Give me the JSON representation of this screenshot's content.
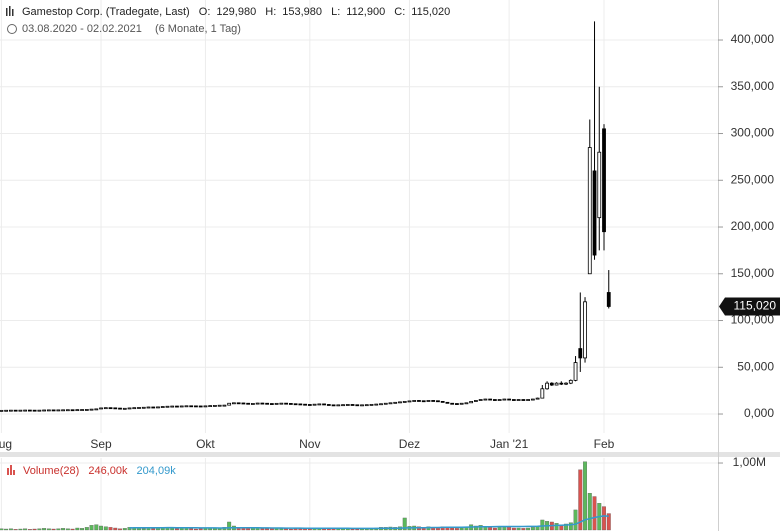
{
  "header": {
    "title": "Gamestop Corp. (Tradegate, Last)",
    "quotes": [
      {
        "label": "O:",
        "value": "129,980"
      },
      {
        "label": "H:",
        "value": "153,980"
      },
      {
        "label": "L:",
        "value": "112,900"
      },
      {
        "label": "C:",
        "value": "115,020"
      }
    ],
    "range": "03.08.2020 - 02.02.2021",
    "period": "(6 Monate, 1 Tag)"
  },
  "chart_data": {
    "type": "candlestick",
    "categories": [
      "Aug",
      null,
      null,
      null,
      null,
      null,
      null,
      null,
      null,
      null,
      null,
      null,
      null,
      null,
      null,
      null,
      null,
      null,
      null,
      null,
      null,
      "Sep",
      null,
      null,
      null,
      null,
      null,
      null,
      null,
      null,
      null,
      null,
      null,
      null,
      null,
      null,
      null,
      null,
      null,
      null,
      null,
      null,
      null,
      "Okt",
      null,
      null,
      null,
      null,
      null,
      null,
      null,
      null,
      null,
      null,
      null,
      null,
      null,
      null,
      null,
      null,
      null,
      null,
      null,
      null,
      null,
      "Nov",
      null,
      null,
      null,
      null,
      null,
      null,
      null,
      null,
      null,
      null,
      null,
      null,
      null,
      null,
      null,
      null,
      null,
      null,
      null,
      null,
      "Dez",
      null,
      null,
      null,
      null,
      null,
      null,
      null,
      null,
      null,
      null,
      null,
      null,
      null,
      null,
      null,
      null,
      null,
      null,
      null,
      null,
      "Jan '21",
      null,
      null,
      null,
      null,
      null,
      null,
      null,
      null,
      null,
      null,
      null,
      null,
      null,
      null,
      null,
      null,
      null,
      null,
      null,
      "Feb",
      null
    ],
    "open": [
      3800,
      3900,
      4000,
      4100,
      4000,
      4100,
      4200,
      4100,
      4000,
      4100,
      4300,
      4400,
      4300,
      4400,
      4500,
      4600,
      4500,
      4700,
      4800,
      4900,
      5200,
      5500,
      6500,
      6800,
      6600,
      6300,
      6000,
      6100,
      6500,
      6800,
      7000,
      7200,
      7500,
      7400,
      7600,
      8000,
      8300,
      8500,
      8400,
      8600,
      8800,
      8700,
      8600,
      8500,
      8700,
      9000,
      9200,
      9400,
      9500,
      11500,
      12000,
      11800,
      11500,
      11000,
      11300,
      11700,
      11500,
      11200,
      11000,
      11400,
      11600,
      11300,
      11000,
      10800,
      10500,
      10200,
      10000,
      10500,
      10800,
      10200,
      9800,
      9500,
      9800,
      10000,
      10200,
      9900,
      9700,
      9800,
      10000,
      10300,
      10600,
      11000,
      11500,
      12000,
      12500,
      13000,
      13500,
      14000,
      14500,
      14200,
      13800,
      14500,
      14200,
      13500,
      12500,
      11500,
      11200,
      11000,
      11500,
      12000,
      13500,
      14500,
      15500,
      16000,
      15500,
      15000,
      15500,
      16000,
      15500,
      15000,
      15500,
      15200,
      15500,
      16000,
      17000,
      27000,
      33000,
      31000,
      33000,
      32000,
      33000,
      36000,
      70000,
      60000,
      150000,
      260000,
      210000,
      305000,
      129980
    ],
    "high": [
      4100,
      4200,
      4300,
      4300,
      4300,
      4400,
      4400,
      4300,
      4300,
      4500,
      4600,
      4600,
      4600,
      4700,
      4800,
      4800,
      4900,
      5000,
      5100,
      5400,
      5700,
      6700,
      7000,
      7000,
      6800,
      6500,
      6300,
      6700,
      7000,
      7200,
      7400,
      7700,
      7700,
      7800,
      8200,
      8500,
      8700,
      8700,
      8800,
      9000,
      9000,
      8900,
      8800,
      8900,
      9200,
      9400,
      9600,
      9700,
      11700,
      12200,
      12200,
      12000,
      11700,
      11500,
      11900,
      11900,
      11700,
      11400,
      11600,
      11800,
      11800,
      11500,
      11200,
      11000,
      10700,
      10400,
      10700,
      11000,
      11000,
      10400,
      10000,
      10000,
      10200,
      10400,
      10400,
      10100,
      10000,
      10200,
      10500,
      10800,
      11200,
      11700,
      12200,
      12700,
      13200,
      13700,
      14200,
      14700,
      14700,
      14400,
      14700,
      14700,
      14400,
      13700,
      12700,
      11700,
      11400,
      11700,
      12200,
      13700,
      14700,
      15700,
      16200,
      16200,
      15700,
      15700,
      16200,
      16200,
      15700,
      15700,
      15700,
      15700,
      16200,
      17500,
      31000,
      35000,
      34000,
      34000,
      35000,
      34000,
      37000,
      62000,
      130000,
      125000,
      315000,
      420000,
      350000,
      310000,
      153980
    ],
    "low": [
      3600,
      3700,
      3800,
      3800,
      3800,
      3900,
      3900,
      3800,
      3800,
      3900,
      4100,
      4100,
      4100,
      4200,
      4300,
      4300,
      4300,
      4500,
      4600,
      4700,
      5000,
      5300,
      6300,
      6400,
      6100,
      5800,
      5800,
      5900,
      6300,
      6600,
      6800,
      7000,
      7200,
      7200,
      7400,
      7800,
      8100,
      8200,
      8200,
      8400,
      8500,
      8400,
      8300,
      8300,
      8500,
      8800,
      9000,
      9200,
      9300,
      11300,
      11600,
      11300,
      10800,
      10800,
      11100,
      11300,
      11000,
      10800,
      10800,
      11200,
      11100,
      10800,
      10600,
      10300,
      10000,
      9800,
      9800,
      10300,
      10000,
      9600,
      9300,
      9300,
      9600,
      9800,
      9700,
      9500,
      9500,
      9600,
      9800,
      10100,
      10400,
      10800,
      11300,
      11800,
      12300,
      12800,
      13300,
      13800,
      14000,
      13600,
      13600,
      14000,
      13300,
      12300,
      11300,
      11000,
      10800,
      10800,
      11300,
      11800,
      13300,
      14300,
      15300,
      15300,
      14800,
      14800,
      15300,
      15300,
      14800,
      14800,
      15000,
      15000,
      15300,
      15800,
      16800,
      26000,
      30000,
      30500,
      31000,
      31000,
      32000,
      35000,
      45000,
      55000,
      152000,
      165000,
      175000,
      175000,
      112900
    ],
    "close": [
      3900,
      4000,
      4100,
      4000,
      4100,
      4200,
      4100,
      4000,
      4100,
      4300,
      4400,
      4300,
      4400,
      4500,
      4600,
      4500,
      4700,
      4800,
      4900,
      5200,
      5500,
      6500,
      6800,
      6600,
      6300,
      6000,
      6100,
      6500,
      6800,
      7000,
      7200,
      7500,
      7400,
      7600,
      8000,
      8300,
      8500,
      8400,
      8600,
      8800,
      8700,
      8600,
      8500,
      8700,
      9000,
      9200,
      9400,
      9500,
      11500,
      12000,
      11800,
      11500,
      11000,
      11300,
      11700,
      11500,
      11200,
      11000,
      11400,
      11600,
      11300,
      11000,
      10800,
      10500,
      10200,
      10000,
      10500,
      10800,
      10200,
      9800,
      9500,
      9800,
      10000,
      10200,
      9900,
      9700,
      9800,
      10000,
      10300,
      10600,
      11000,
      11500,
      12000,
      12500,
      13000,
      13500,
      14000,
      14500,
      14200,
      13800,
      14500,
      14200,
      13500,
      12500,
      11500,
      11200,
      11000,
      11500,
      12000,
      13500,
      14500,
      15500,
      16000,
      15500,
      15000,
      15500,
      16000,
      15500,
      15000,
      15500,
      15200,
      15500,
      16000,
      17000,
      27000,
      33000,
      31000,
      33000,
      32000,
      33000,
      36000,
      55000,
      60000,
      120000,
      285000,
      170000,
      280000,
      195000,
      115020
    ],
    "last_label": "115,020",
    "ylim": [
      -20300,
      442800
    ],
    "yticks": [
      {
        "value": 0,
        "label": "0,000"
      },
      {
        "value": 50000,
        "label": "50,000"
      },
      {
        "value": 100000,
        "label": "100,000"
      },
      {
        "value": 150000,
        "label": "150,000"
      },
      {
        "value": 200000,
        "label": "200,000"
      },
      {
        "value": 250000,
        "label": "250,000"
      },
      {
        "value": 300000,
        "label": "300,000"
      },
      {
        "value": 350000,
        "label": "350,000"
      },
      {
        "value": 400000,
        "label": "400,000"
      }
    ],
    "grid": true,
    "up_fill": "#ffffff",
    "down_fill": "#000000",
    "candle_stroke": "#000000",
    "volume": {
      "name": "Volume(28)",
      "value_label": "246,00k",
      "ma_label": "204,09k",
      "up_color": "#5cb85c",
      "down_color": "#d9534f",
      "ma_color": "#3399cc",
      "ylim": [
        0,
        1075000
      ],
      "yticks": [
        {
          "value": 1000000,
          "label": "1,00M"
        }
      ],
      "values": [
        20000,
        15000,
        20000,
        10000,
        15000,
        20000,
        10000,
        15000,
        20000,
        25000,
        20000,
        15000,
        20000,
        25000,
        20000,
        15000,
        30000,
        25000,
        40000,
        70000,
        80000,
        60000,
        50000,
        40000,
        30000,
        20000,
        25000,
        40000,
        30000,
        25000,
        20000,
        30000,
        20000,
        25000,
        40000,
        35000,
        30000,
        20000,
        25000,
        30000,
        20000,
        15000,
        20000,
        25000,
        30000,
        30000,
        35000,
        40000,
        120000,
        60000,
        40000,
        30000,
        25000,
        30000,
        25000,
        20000,
        20000,
        25000,
        25000,
        20000,
        20000,
        15000,
        20000,
        20000,
        20000,
        20000,
        30000,
        25000,
        25000,
        20000,
        20000,
        20000,
        25000,
        20000,
        15000,
        15000,
        20000,
        20000,
        25000,
        30000,
        40000,
        40000,
        45000,
        40000,
        50000,
        180000,
        55000,
        60000,
        50000,
        40000,
        50000,
        40000,
        40000,
        50000,
        50000,
        30000,
        25000,
        30000,
        40000,
        80000,
        60000,
        70000,
        50000,
        40000,
        30000,
        40000,
        40000,
        40000,
        30000,
        30000,
        25000,
        30000,
        40000,
        50000,
        150000,
        130000,
        120000,
        100000,
        80000,
        90000,
        110000,
        300000,
        900000,
        1020000,
        550000,
        500000,
        400000,
        350000,
        246000
      ],
      "ma": [
        null,
        null,
        null,
        null,
        null,
        null,
        null,
        null,
        null,
        null,
        null,
        null,
        null,
        null,
        null,
        null,
        null,
        null,
        null,
        null,
        null,
        null,
        null,
        null,
        null,
        null,
        null,
        32000,
        33000,
        34000,
        35000,
        35000,
        35000,
        35000,
        35000,
        36000,
        36000,
        35000,
        35000,
        34000,
        34000,
        33000,
        32000,
        32000,
        31000,
        31000,
        30000,
        30000,
        33000,
        33000,
        33000,
        33000,
        33000,
        33000,
        33000,
        32000,
        31000,
        30000,
        30000,
        30000,
        29000,
        29000,
        28000,
        28000,
        27000,
        27000,
        27000,
        26000,
        26000,
        26000,
        26000,
        25000,
        25000,
        25000,
        24000,
        24000,
        24000,
        24000,
        24000,
        24000,
        25000,
        25000,
        26000,
        26000,
        27000,
        31000,
        32000,
        33000,
        34000,
        35000,
        36000,
        37000,
        38000,
        39000,
        40000,
        40000,
        40000,
        41000,
        44000,
        45000,
        47000,
        48000,
        49000,
        50000,
        51000,
        52000,
        52000,
        52000,
        53000,
        53000,
        53000,
        54000,
        54000,
        55000,
        59000,
        63000,
        66000,
        69000,
        71000,
        74000,
        77000,
        87000,
        118000,
        152000,
        170000,
        186000,
        200000,
        210000,
        204090
      ]
    }
  }
}
